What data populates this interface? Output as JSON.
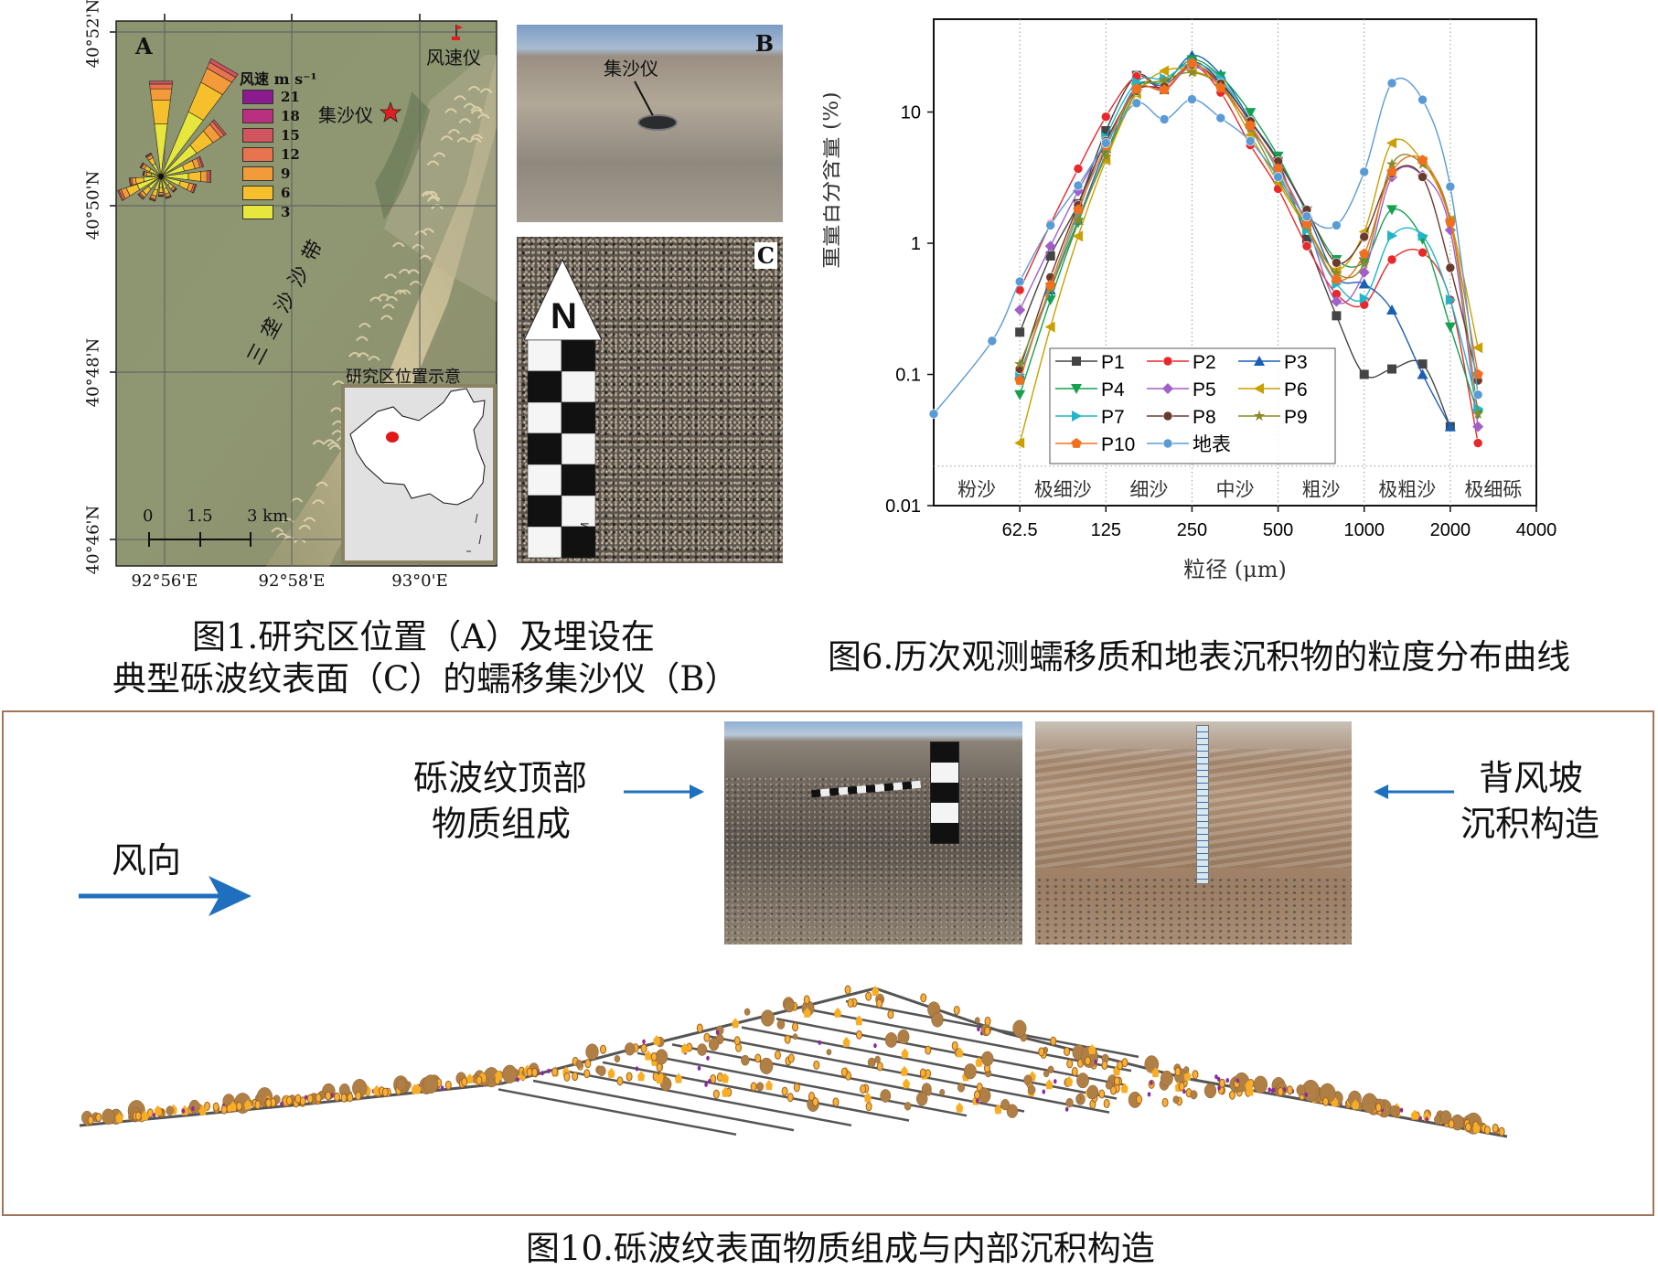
{
  "figure1": {
    "panel_a": {
      "letter": "A",
      "lat_labels": [
        "40°52'N",
        "40°50'N",
        "40°48'N",
        "40°46'N"
      ],
      "lon_labels": [
        "92°56'E",
        "92°58'E",
        "93°0'E"
      ],
      "anemometer_label": "风速仪",
      "sand_trap_label": "集沙仪",
      "sand_belt_label": "三垄沙沙带",
      "legend_title": "风速 m s⁻¹",
      "legend_items": [
        {
          "label": "21",
          "color": "#8b1a8f"
        },
        {
          "label": "18",
          "color": "#b8307f"
        },
        {
          "label": "15",
          "color": "#d2545e"
        },
        {
          "label": "12",
          "color": "#e8734f"
        },
        {
          "label": "9",
          "color": "#f39a3b"
        },
        {
          "label": "6",
          "color": "#f5c02c"
        },
        {
          "label": "3",
          "color": "#e6e63c"
        }
      ],
      "scale_labels": [
        "0",
        "1.5",
        "3 km"
      ],
      "inset_title": "研究区位置示意"
    },
    "panel_b": {
      "letter": "B",
      "label": "集沙仪"
    },
    "panel_c": {
      "letter": "C",
      "north_label": "N",
      "scale_label": "2CM"
    },
    "caption_line1": "图1.研究区位置（A）及埋设在",
    "caption_line2": "典型砾波纹表面（C）的蠕移集沙仪（B）"
  },
  "figure6": {
    "caption": "图6.历次观测蠕移质和地表沉积物的粒度分布曲线"
  },
  "chart_data": {
    "type": "line",
    "xlabel": "粒径 (μm)",
    "ylabel": "重量百分含量 (%)",
    "x_scale": "log2",
    "y_scale": "log10",
    "xlim": [
      31.25,
      4000
    ],
    "ylim": [
      0.01,
      51
    ],
    "x_ticks": [
      "62.5",
      "125",
      "250",
      "500",
      "1000",
      "2000",
      "4000"
    ],
    "x_tick_values": [
      62.5,
      125,
      250,
      500,
      1000,
      2000,
      4000
    ],
    "y_ticks": [
      "0.01",
      "0.1",
      "1",
      "10"
    ],
    "y_tick_values": [
      0.01,
      0.1,
      1,
      10
    ],
    "grid": "vertical dotted at class boundaries",
    "legend_placement": "bottom-center",
    "size_classes": [
      "粉沙",
      "极细沙",
      "细沙",
      "中沙",
      "粗沙",
      "极粗沙",
      "极细砾"
    ],
    "x": [
      62.5,
      80,
      100,
      125,
      160,
      200,
      250,
      315,
      400,
      500,
      630,
      800,
      1000,
      1250,
      1600,
      2000,
      2500
    ],
    "series": [
      {
        "name": "P1",
        "color": "#444444",
        "marker": "square",
        "values": [
          0.21,
          0.8,
          2.0,
          7.2,
          19,
          14.8,
          24,
          17,
          8.4,
          4.2,
          1.07,
          0.28,
          0.1,
          0.11,
          0.12,
          0.04,
          null
        ]
      },
      {
        "name": "P2",
        "color": "#e8282b",
        "marker": "circle",
        "values": [
          0.44,
          1.4,
          3.7,
          9.2,
          18.7,
          14.8,
          22.7,
          14.1,
          5.6,
          2.6,
          0.95,
          0.41,
          0.34,
          0.75,
          0.85,
          0.37,
          0.03
        ]
      },
      {
        "name": "P3",
        "color": "#1b5fb5",
        "marker": "triangle-up",
        "values": [
          0.1,
          0.44,
          1.5,
          5.3,
          15.8,
          16.3,
          27,
          19.3,
          8.7,
          4.3,
          1.7,
          0.55,
          0.49,
          0.31,
          0.1,
          0.04,
          null
        ]
      },
      {
        "name": "P4",
        "color": "#17a050",
        "marker": "triangle-down",
        "values": [
          0.07,
          0.37,
          1.44,
          4.8,
          15.3,
          16.9,
          25,
          18.7,
          9.9,
          4.6,
          1.76,
          0.75,
          0.72,
          1.8,
          1.07,
          0.23,
          0.05
        ]
      },
      {
        "name": "P5",
        "color": "#a060c8",
        "marker": "diamond",
        "values": [
          0.31,
          0.95,
          2.5,
          6.0,
          14.8,
          15.1,
          22,
          16.1,
          7.6,
          3.8,
          1.4,
          0.36,
          0.6,
          3.2,
          3.3,
          1.26,
          0.04
        ]
      },
      {
        "name": "P6",
        "color": "#c9a000",
        "marker": "triangle-left",
        "values": [
          0.03,
          0.23,
          1.13,
          4.3,
          13.8,
          20.6,
          20.6,
          15.8,
          6.7,
          2.9,
          1.3,
          0.63,
          1.22,
          5.8,
          4.2,
          1.5,
          0.16
        ]
      },
      {
        "name": "P7",
        "color": "#22b5c8",
        "marker": "triangle-right",
        "values": [
          0.1,
          0.45,
          1.7,
          6.4,
          16.9,
          18,
          23.6,
          18,
          8.1,
          3.5,
          1.26,
          0.49,
          0.38,
          1.14,
          1.14,
          0.37,
          0.055
        ]
      },
      {
        "name": "P8",
        "color": "#6b3a2e",
        "marker": "circle",
        "values": [
          0.11,
          0.55,
          1.95,
          6.0,
          14.5,
          15.8,
          23,
          16.5,
          8.5,
          4.2,
          1.8,
          0.71,
          1.12,
          3.4,
          3.2,
          0.65,
          0.09
        ]
      },
      {
        "name": "P9",
        "color": "#8a8a28",
        "marker": "star",
        "values": [
          0.12,
          0.45,
          1.5,
          4.6,
          14.3,
          17.5,
          20,
          15.8,
          7.6,
          3.1,
          1.35,
          0.59,
          0.7,
          4.0,
          4.0,
          1.5,
          0.05
        ]
      },
      {
        "name": "P10",
        "color": "#f07020",
        "marker": "pentagon",
        "values": [
          0.09,
          0.48,
          1.8,
          5.5,
          15.1,
          14.8,
          23.6,
          15.3,
          7.9,
          3.7,
          1.4,
          0.53,
          0.83,
          3.5,
          4.3,
          1.44,
          0.1
        ]
      },
      {
        "name": "地表",
        "color": "#5b9bd5",
        "marker": "circle",
        "x": [
          31.25,
          50,
          62.5,
          80,
          100,
          125,
          160,
          200,
          250,
          315,
          400,
          500,
          630,
          800,
          1000,
          1250,
          1600,
          2000,
          2500
        ],
        "values": [
          0.05,
          0.18,
          0.51,
          1.37,
          2.75,
          5.8,
          11.7,
          8.8,
          12.5,
          9.0,
          6.0,
          3.2,
          1.6,
          1.37,
          3.5,
          16.6,
          12.4,
          2.7,
          0.07
        ]
      }
    ]
  },
  "figure10": {
    "wind_label": "风向",
    "crest_label_line1": "砾波纹顶部",
    "crest_label_line2": "物质组成",
    "lee_label_line1": "背风坡",
    "lee_label_line2": "沉积构造",
    "arrow_color": "#1f6fbf",
    "caption": "图10.砾波纹表面物质组成与内部沉积构造"
  }
}
